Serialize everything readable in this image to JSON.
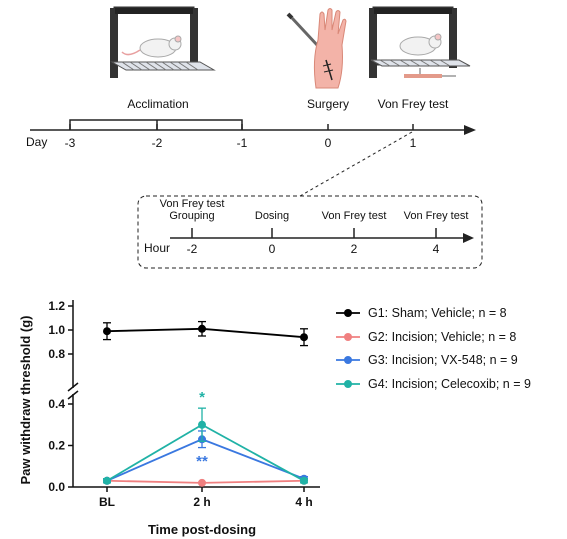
{
  "timeline": {
    "day_label": "Day",
    "days": [
      {
        "value": "-3",
        "label": ""
      },
      {
        "value": "-2",
        "label": ""
      },
      {
        "value": "-1",
        "label": ""
      },
      {
        "value": "0",
        "label": "Surgery"
      },
      {
        "value": "1",
        "label": "Von Frey test"
      }
    ],
    "acclimation_label": "Acclimation",
    "hour_label": "Hour",
    "hours": [
      {
        "value": "-2",
        "label1": "Von Frey test",
        "label2": "Grouping"
      },
      {
        "value": "0",
        "label1": "",
        "label2": "Dosing"
      },
      {
        "value": "2",
        "label1": "",
        "label2": "Von Frey test"
      },
      {
        "value": "4",
        "label1": "",
        "label2": "Von Frey test"
      }
    ]
  },
  "chart_data": {
    "type": "line",
    "title": "",
    "xlabel": "Time post-dosing",
    "ylabel": "Paw withdraw threshold (g)",
    "categories": [
      "BL",
      "2 h",
      "4 h"
    ],
    "y_axis_break": [
      0.4,
      0.8
    ],
    "y_ticks": [
      "0.0",
      "0.2",
      "0.4",
      "0.8",
      "1.0",
      "1.2"
    ],
    "legend_position": "right",
    "series": [
      {
        "name": "G1: Sham; Vehicle; n = 8",
        "color": "#000000",
        "values": [
          0.99,
          1.01,
          0.94
        ],
        "errors": [
          0.07,
          0.06,
          0.07
        ]
      },
      {
        "name": "G2: Incision; Vehicle; n = 8",
        "color": "#f08080",
        "values": [
          0.03,
          0.02,
          0.03
        ],
        "errors": [
          0.005,
          0.005,
          0.005
        ]
      },
      {
        "name": "G3: Incision; VX-548; n = 9",
        "color": "#3a78e0",
        "values": [
          0.03,
          0.23,
          0.04
        ],
        "errors": [
          0.01,
          0.04,
          0.01
        ]
      },
      {
        "name": "G4: Incision; Celecoxib; n = 9",
        "color": "#20b2a6",
        "values": [
          0.03,
          0.3,
          0.03
        ],
        "errors": [
          0.01,
          0.08,
          0.01
        ]
      }
    ],
    "annotations": [
      {
        "text": "*",
        "category": "2 h",
        "color": "#20b2a6"
      },
      {
        "text": "**",
        "category": "2 h",
        "color": "#3a78e0"
      }
    ]
  }
}
